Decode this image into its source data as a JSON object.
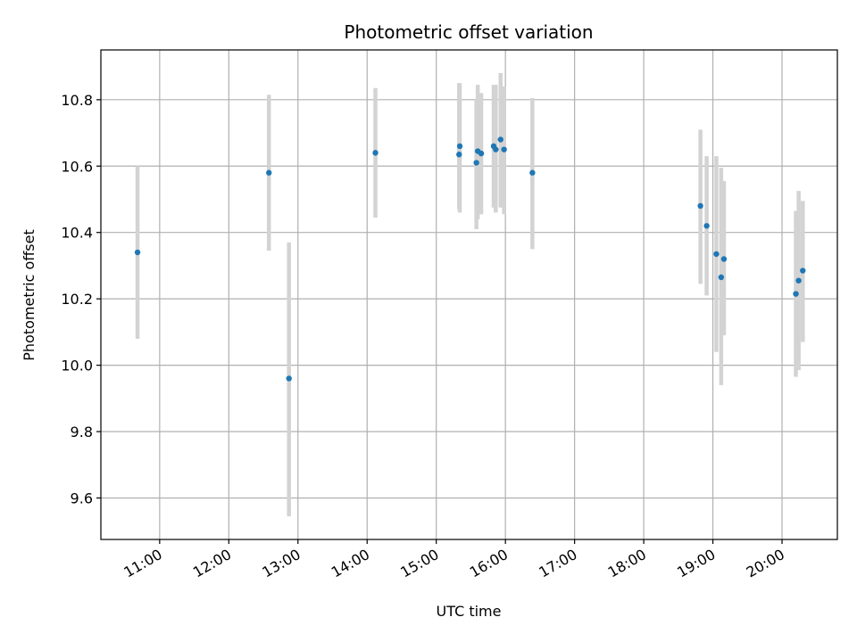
{
  "chart_data": {
    "type": "scatter",
    "title": "Photometric offset variation",
    "xlabel": "UTC time",
    "ylabel": "Photometric offset",
    "x_ticks": [
      "11:00",
      "12:00",
      "13:00",
      "14:00",
      "15:00",
      "16:00",
      "17:00",
      "18:00",
      "19:00",
      "20:00"
    ],
    "x_tick_hours": [
      11,
      12,
      13,
      14,
      15,
      16,
      17,
      18,
      19,
      20
    ],
    "xlim_hours": [
      10.15,
      20.8
    ],
    "y_ticks": [
      "9.6",
      "9.8",
      "10.0",
      "10.2",
      "10.4",
      "10.6",
      "10.8"
    ],
    "y_tick_values": [
      9.6,
      9.8,
      10.0,
      10.2,
      10.4,
      10.6,
      10.8
    ],
    "ylim": [
      9.475,
      10.95
    ],
    "grid": true,
    "colors": {
      "point": "#1f77b4",
      "errorbar": "#d3d3d3",
      "grid": "#b0b0b0"
    },
    "points": [
      {
        "t": 10.68,
        "y": 10.34,
        "ylow": 10.08,
        "yhigh": 10.6
      },
      {
        "t": 12.58,
        "y": 10.58,
        "ylow": 10.345,
        "yhigh": 10.815
      },
      {
        "t": 12.87,
        "y": 9.96,
        "ylow": 9.545,
        "yhigh": 10.37
      },
      {
        "t": 14.12,
        "y": 10.64,
        "ylow": 10.445,
        "yhigh": 10.835
      },
      {
        "t": 15.33,
        "y": 10.635,
        "ylow": 10.47,
        "yhigh": 10.85
      },
      {
        "t": 15.34,
        "y": 10.66,
        "ylow": 10.46,
        "yhigh": 10.85
      },
      {
        "t": 15.58,
        "y": 10.61,
        "ylow": 10.41,
        "yhigh": 10.8
      },
      {
        "t": 15.6,
        "y": 10.645,
        "ylow": 10.44,
        "yhigh": 10.845
      },
      {
        "t": 15.65,
        "y": 10.638,
        "ylow": 10.455,
        "yhigh": 10.82
      },
      {
        "t": 15.83,
        "y": 10.66,
        "ylow": 10.475,
        "yhigh": 10.845
      },
      {
        "t": 15.86,
        "y": 10.65,
        "ylow": 10.46,
        "yhigh": 10.845
      },
      {
        "t": 15.93,
        "y": 10.68,
        "ylow": 10.475,
        "yhigh": 10.88
      },
      {
        "t": 15.98,
        "y": 10.65,
        "ylow": 10.455,
        "yhigh": 10.84
      },
      {
        "t": 16.39,
        "y": 10.58,
        "ylow": 10.35,
        "yhigh": 10.805
      },
      {
        "t": 18.82,
        "y": 10.48,
        "ylow": 10.245,
        "yhigh": 10.71
      },
      {
        "t": 18.91,
        "y": 10.42,
        "ylow": 10.21,
        "yhigh": 10.63
      },
      {
        "t": 19.05,
        "y": 10.335,
        "ylow": 10.04,
        "yhigh": 10.63
      },
      {
        "t": 19.12,
        "y": 10.265,
        "ylow": 9.94,
        "yhigh": 10.595
      },
      {
        "t": 19.16,
        "y": 10.32,
        "ylow": 10.09,
        "yhigh": 10.555
      },
      {
        "t": 20.2,
        "y": 10.215,
        "ylow": 9.965,
        "yhigh": 10.465
      },
      {
        "t": 20.24,
        "y": 10.255,
        "ylow": 9.985,
        "yhigh": 10.525
      },
      {
        "t": 20.3,
        "y": 10.285,
        "ylow": 10.07,
        "yhigh": 10.495
      }
    ]
  }
}
